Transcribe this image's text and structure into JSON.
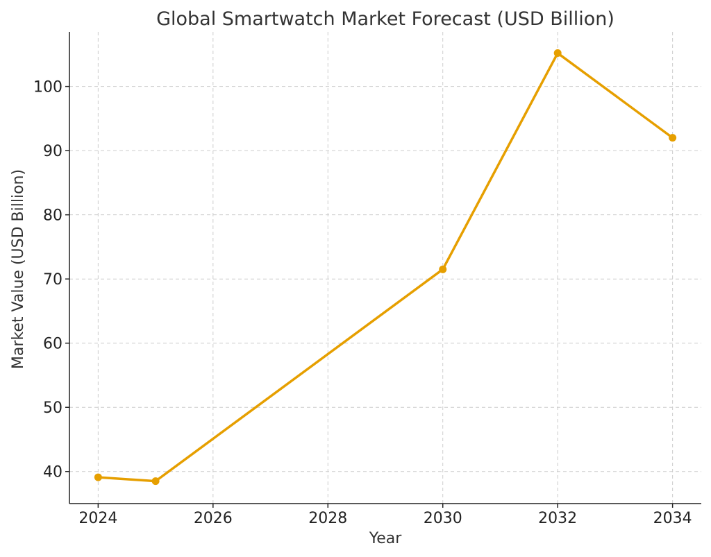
{
  "chart_data": {
    "type": "line",
    "title": "Global Smartwatch Market Forecast (USD Billion)",
    "xlabel": "Year",
    "ylabel": "Market Value (USD Billion)",
    "xlim": [
      2023.5,
      2034.5
    ],
    "ylim": [
      35.0,
      108.5
    ],
    "x_ticks": [
      2024,
      2026,
      2028,
      2030,
      2032,
      2034
    ],
    "y_ticks": [
      40,
      50,
      60,
      70,
      80,
      90,
      100
    ],
    "grid": true,
    "series": [
      {
        "color": "#E69F00",
        "x": [
          2024,
          2025,
          2030,
          2032,
          2034
        ],
        "y": [
          39.1,
          38.5,
          71.5,
          105.2,
          92.0
        ]
      }
    ]
  }
}
